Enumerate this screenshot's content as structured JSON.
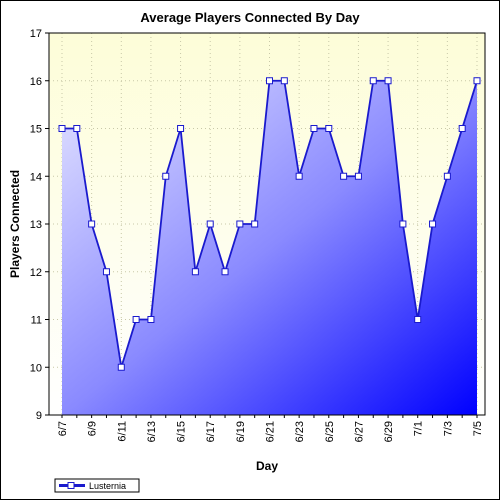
{
  "chart_data": {
    "type": "area",
    "title": "Average Players Connected By Day",
    "xlabel": "Day",
    "ylabel": "Players Connected",
    "ylim": [
      9,
      17
    ],
    "yticks": [
      9,
      10,
      11,
      12,
      13,
      14,
      15,
      16,
      17
    ],
    "grid": true,
    "legend_position": "bottom-left",
    "categories": [
      "6/7",
      "6/8",
      "6/9",
      "6/10",
      "6/11",
      "6/12",
      "6/13",
      "6/14",
      "6/15",
      "6/16",
      "6/17",
      "6/18",
      "6/19",
      "6/20",
      "6/21",
      "6/22",
      "6/23",
      "6/24",
      "6/25",
      "6/26",
      "6/27",
      "6/28",
      "6/29",
      "6/30",
      "7/1",
      "7/2",
      "7/3",
      "7/4",
      "7/5"
    ],
    "tick_labels": [
      "6/7",
      "6/9",
      "6/11",
      "6/13",
      "6/15",
      "6/17",
      "6/19",
      "6/21",
      "6/23",
      "6/25",
      "6/27",
      "6/29",
      "7/1",
      "7/3",
      "7/5"
    ],
    "series": [
      {
        "name": "Lusternia",
        "values": [
          15,
          15,
          13,
          12,
          10,
          11,
          11,
          14,
          15,
          12,
          13,
          12,
          13,
          13,
          16,
          16,
          14,
          15,
          15,
          14,
          14,
          16,
          16,
          13,
          11,
          13,
          14,
          15,
          16
        ]
      }
    ],
    "colors": {
      "line": "#1a1acd",
      "marker_fill": "#ffffff",
      "plot_background": "#fdfde0",
      "area_light": "#e4e4ff",
      "area_mid": "#8a8aff",
      "area_dark": "#0000ff"
    }
  }
}
